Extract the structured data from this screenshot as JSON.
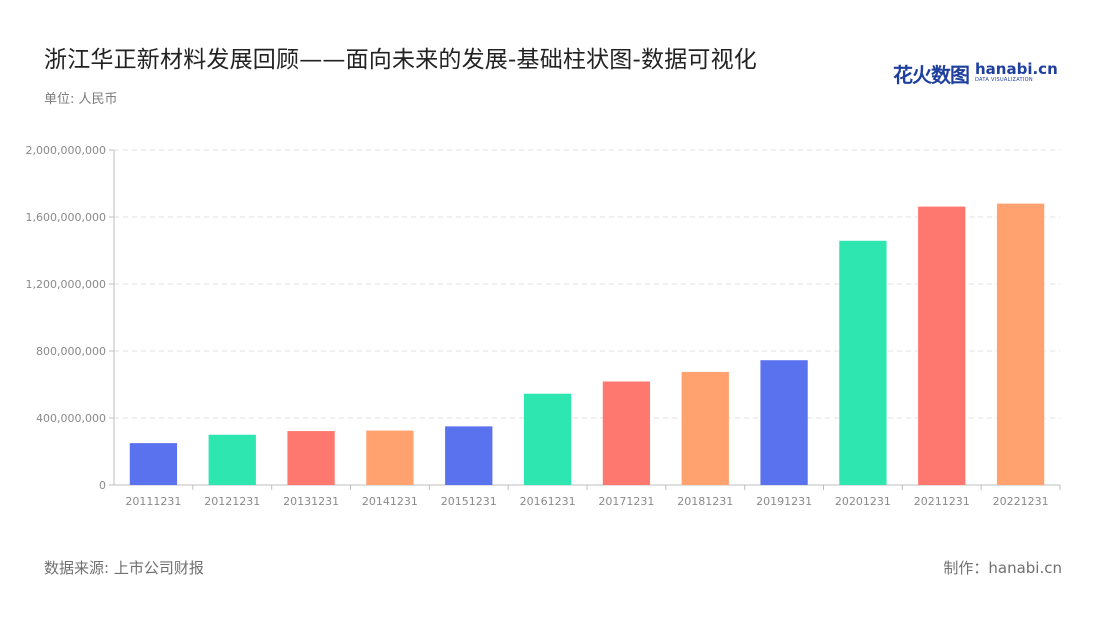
{
  "title": "浙江华正新材料发展回顾——面向未来的发展-基础柱状图-数据可视化",
  "unit_label": "单位: 人民币",
  "brand": {
    "cn": "花火数图",
    "en": "hanabi.cn",
    "sub": "DATA VISUALIZATION"
  },
  "footer": {
    "source": "数据来源: 上市公司财报",
    "maker": "制作：hanabi.cn"
  },
  "colors": {
    "palette": [
      "#5a72ee",
      "#2de6b0",
      "#ff7870",
      "#ffa26f"
    ],
    "grid": "#e0e0e0",
    "axis": "#bfbfbf"
  },
  "chart_data": {
    "type": "bar",
    "categories": [
      "20111231",
      "20121231",
      "20131231",
      "20141231",
      "20151231",
      "20161231",
      "20171231",
      "20181231",
      "20191231",
      "20201231",
      "20211231",
      "20221231"
    ],
    "values": [
      250000000,
      300000000,
      322000000,
      325000000,
      350000000,
      545000000,
      618000000,
      675000000,
      745000000,
      1458000000,
      1662000000,
      1680000000
    ],
    "ylim": [
      0,
      2000000000
    ],
    "yticks": [
      0,
      400000000,
      800000000,
      1200000000,
      1600000000,
      2000000000
    ],
    "ytick_labels": [
      "0",
      "400,000,000",
      "800,000,000",
      "1,200,000,000",
      "1,600,000,000",
      "2,000,000,000"
    ],
    "grid": true,
    "legend": "none"
  }
}
